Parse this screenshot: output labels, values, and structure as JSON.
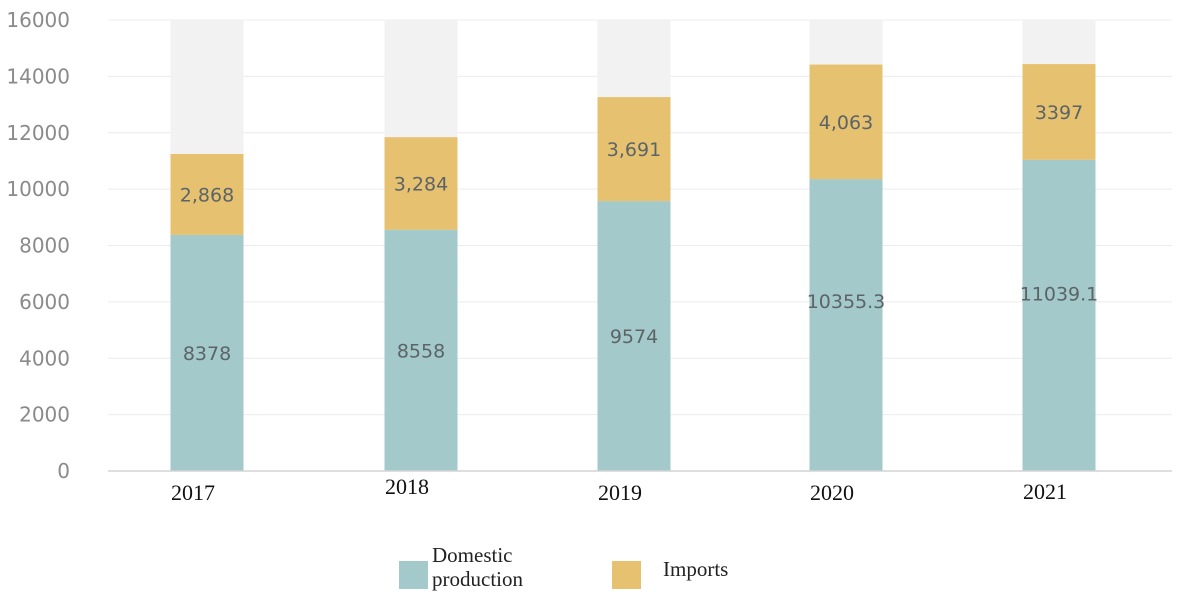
{
  "chart_data": {
    "type": "bar",
    "stacked": true,
    "categories": [
      "2017",
      "2018",
      "2019",
      "2020",
      "2021"
    ],
    "series": [
      {
        "name": "Domestic production",
        "values": [
          8378,
          8558,
          9574,
          10355.3,
          11039.1
        ],
        "labels": [
          "8378",
          "8558",
          "9574",
          "10355.3",
          "11039.1"
        ],
        "color": "#a3c9ca"
      },
      {
        "name": "Imports",
        "values": [
          2868,
          3284,
          3691,
          4063,
          3397
        ],
        "labels": [
          "2,868",
          "3,284",
          "3,691",
          "4,063",
          "3397"
        ],
        "color": "#e5c170"
      }
    ],
    "background_bar_color": "#f2f2f2",
    "ylim": [
      0,
      16000
    ],
    "yticks": [
      "0",
      "2000",
      "4000",
      "6000",
      "8000",
      "10000",
      "12000",
      "14000",
      "16000"
    ],
    "grid": true,
    "legend": {
      "position": "bottom",
      "entries": [
        {
          "lines": [
            "Domestic",
            "production"
          ]
        },
        {
          "lines": [
            "Imports"
          ]
        }
      ]
    }
  }
}
